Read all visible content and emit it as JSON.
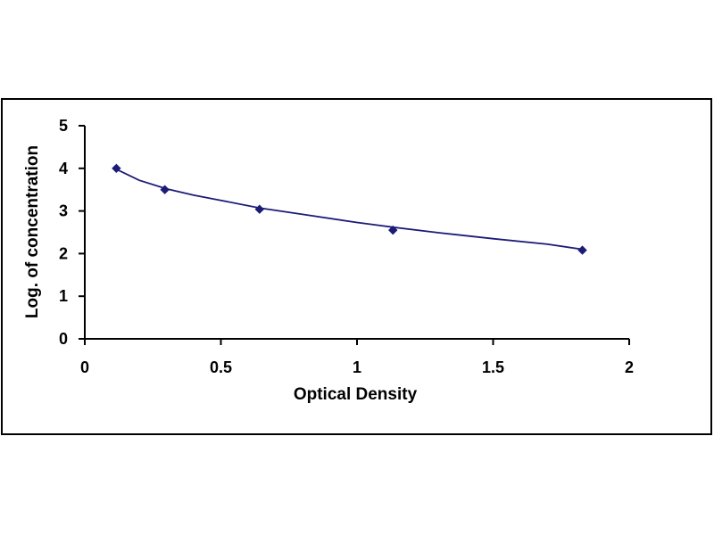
{
  "chart_data": {
    "type": "scatter",
    "title": "",
    "xlabel": "Optical Density",
    "ylabel": "Log. of concentration",
    "xlim": [
      0,
      2
    ],
    "ylim": [
      0,
      5
    ],
    "x_ticks": [
      "0",
      "0.5",
      "1",
      "1.5",
      "2"
    ],
    "y_ticks": [
      "0",
      "1",
      "2",
      "3",
      "4",
      "5"
    ],
    "grid": false,
    "legend": "none",
    "series": [
      {
        "x": [
          0.116,
          0.294,
          0.642,
          1.132,
          1.828
        ],
        "y": [
          4.0,
          3.5,
          3.04,
          2.55,
          2.08
        ]
      }
    ],
    "trendline": {
      "type": "logarithmic",
      "x": [
        0.116,
        0.2,
        0.3,
        0.4,
        0.5,
        0.642,
        0.8,
        1.0,
        1.132,
        1.3,
        1.5,
        1.7,
        1.828
      ],
      "y": [
        3.98,
        3.72,
        3.52,
        3.37,
        3.25,
        3.07,
        2.92,
        2.73,
        2.62,
        2.49,
        2.35,
        2.22,
        2.1
      ]
    },
    "colors": {
      "marker": "#1c1c78",
      "line": "#1c1c78",
      "axis": "#000000",
      "frame": "#000000"
    }
  }
}
